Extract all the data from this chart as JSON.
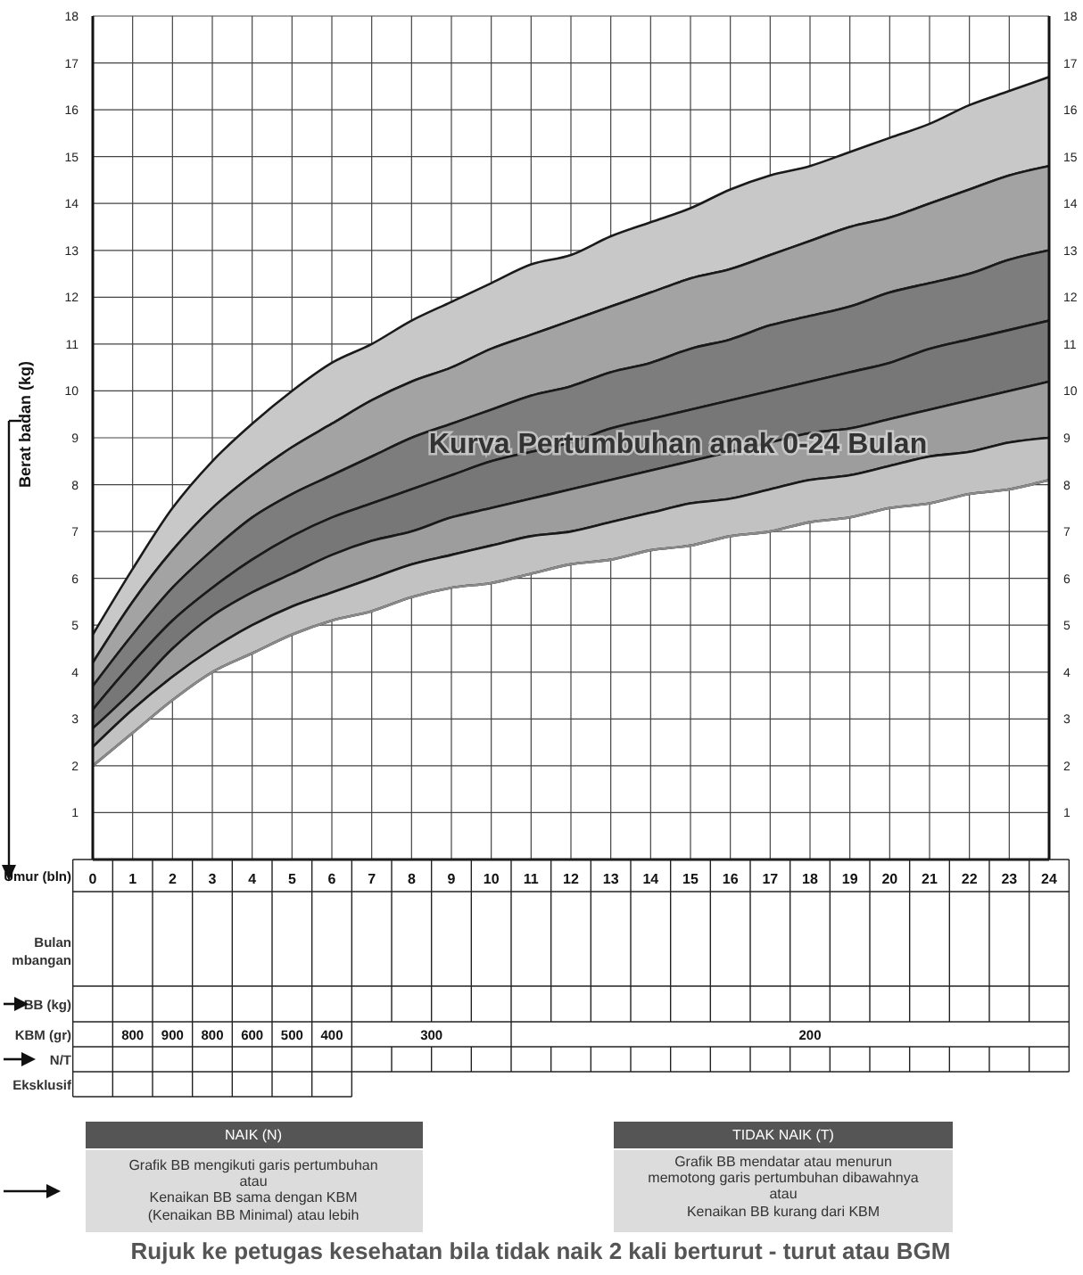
{
  "chart_data": {
    "type": "area",
    "title": "Kurva Pertumbuhan anak 0-24 Bulan",
    "xlabel": "Umur (bln)",
    "ylabel": "Berat badan (kg)",
    "x": [
      0,
      1,
      2,
      3,
      4,
      5,
      6,
      7,
      8,
      9,
      10,
      11,
      12,
      13,
      14,
      15,
      16,
      17,
      18,
      19,
      20,
      21,
      22,
      23,
      24
    ],
    "series": [
      {
        "color": "#c8c8c8",
        "values": [
          4.8,
          6.2,
          7.5,
          8.5,
          9.3,
          10.0,
          10.6,
          11.0,
          11.5,
          11.9,
          12.3,
          12.7,
          12.9,
          13.3,
          13.6,
          13.9,
          14.3,
          14.6,
          14.8,
          15.1,
          15.4,
          15.7,
          16.1,
          16.4,
          16.7
        ]
      },
      {
        "color": "#a3a3a3",
        "values": [
          4.2,
          5.5,
          6.6,
          7.5,
          8.2,
          8.8,
          9.3,
          9.8,
          10.2,
          10.5,
          10.9,
          11.2,
          11.5,
          11.8,
          12.1,
          12.4,
          12.6,
          12.9,
          13.2,
          13.5,
          13.7,
          14.0,
          14.3,
          14.6,
          14.8
        ]
      },
      {
        "color": "#7d7d7d",
        "values": [
          3.7,
          4.8,
          5.8,
          6.6,
          7.3,
          7.8,
          8.2,
          8.6,
          9.0,
          9.3,
          9.6,
          9.9,
          10.1,
          10.4,
          10.6,
          10.9,
          11.1,
          11.4,
          11.6,
          11.8,
          12.1,
          12.3,
          12.5,
          12.8,
          13.0
        ]
      },
      {
        "color": "#777777",
        "values": [
          3.2,
          4.2,
          5.1,
          5.8,
          6.4,
          6.9,
          7.3,
          7.6,
          7.9,
          8.2,
          8.5,
          8.7,
          8.9,
          9.2,
          9.4,
          9.6,
          9.8,
          10.0,
          10.2,
          10.4,
          10.6,
          10.9,
          11.1,
          11.3,
          11.5
        ]
      },
      {
        "color": "#9d9d9d",
        "values": [
          2.8,
          3.6,
          4.5,
          5.2,
          5.7,
          6.1,
          6.5,
          6.8,
          7.0,
          7.3,
          7.5,
          7.7,
          7.9,
          8.1,
          8.3,
          8.5,
          8.7,
          8.9,
          9.1,
          9.2,
          9.4,
          9.6,
          9.8,
          10.0,
          10.2
        ]
      },
      {
        "color": "#c2c2c2",
        "values": [
          2.4,
          3.2,
          3.9,
          4.5,
          5.0,
          5.4,
          5.7,
          6.0,
          6.3,
          6.5,
          6.7,
          6.9,
          7.0,
          7.2,
          7.4,
          7.6,
          7.7,
          7.9,
          8.1,
          8.2,
          8.4,
          8.6,
          8.7,
          8.9,
          9.0
        ]
      },
      {
        "type": "line",
        "color": "#8a8a8a",
        "values": [
          2.0,
          2.7,
          3.4,
          4.0,
          4.4,
          4.8,
          5.1,
          5.3,
          5.6,
          5.8,
          5.9,
          6.1,
          6.3,
          6.4,
          6.6,
          6.7,
          6.9,
          7.0,
          7.2,
          7.3,
          7.5,
          7.6,
          7.8,
          7.9,
          8.1
        ]
      }
    ],
    "xlim": [
      0,
      24
    ],
    "xticks": [
      0,
      1,
      2,
      3,
      4,
      5,
      6,
      7,
      8,
      9,
      10,
      11,
      12,
      13,
      14,
      15,
      16,
      17,
      18,
      19,
      20,
      21,
      22,
      23,
      24
    ],
    "ylim": [
      0,
      18
    ],
    "yticks": [
      1,
      2,
      3,
      4,
      5,
      6,
      7,
      8,
      9,
      10,
      11,
      12,
      13,
      14,
      15,
      16,
      17,
      18
    ],
    "y2lim": [
      0,
      18
    ],
    "y2ticks": [
      1,
      2,
      3,
      4,
      5,
      6,
      7,
      8,
      9,
      10,
      11,
      12,
      13,
      14,
      15,
      16,
      17,
      18
    ],
    "grid": true,
    "legend": false,
    "marker": "none",
    "annotations": [
      "800",
      "900",
      "800",
      "600",
      "500",
      "400",
      "300",
      "200",
      "Bulan",
      "mbangan",
      "BB (kg)",
      "KBM (gr)",
      "N/T",
      "Eksklusif",
      "NAIK (N)",
      "Grafik BB mengikuti garis pertumbuhan",
      "atau",
      "Kenaikan BB sama dengan KBM",
      "(Kenaikan BB Minimal) atau lebih",
      "TIDAK NAIK (T)",
      "Grafik BB mendatar atau menurun",
      "memotong garis pertumbuhan dibawahnya",
      "atau",
      "Kenaikan BB kurang dari KBM",
      "Rujuk ke petugas kesehatan bila tidak naik 2 kali berturut - turut atau BGM"
    ]
  }
}
